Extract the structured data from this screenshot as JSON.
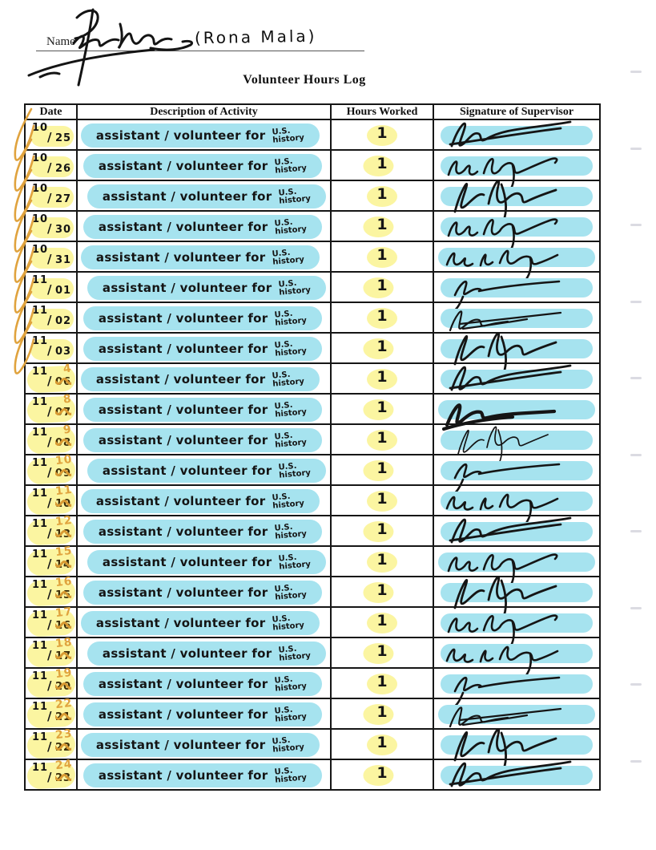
{
  "document": {
    "name_label": "Name",
    "name_printed": "(Rona Mala)",
    "title": "Volunteer Hours Log"
  },
  "colors": {
    "highlight_yellow": "#fbf5a1",
    "highlight_cyan": "#a6e3ef",
    "correction_orange": "#e0a33e",
    "ink_black": "#151515"
  },
  "table": {
    "columns": [
      "Date",
      "Description of Activity",
      "Hours Worked",
      "Signature of Supervisor"
    ],
    "description": {
      "main": "assistant / volunteer for",
      "subject_line1": "U.S.",
      "subject_line2": "history"
    },
    "rows": [
      {
        "month": "10",
        "day": "25",
        "correction": "",
        "checkmark": true,
        "hours": "1",
        "signature_variant": "A"
      },
      {
        "month": "10",
        "day": "26",
        "correction": "",
        "checkmark": true,
        "hours": "1",
        "signature_variant": "B"
      },
      {
        "month": "10",
        "day": "27",
        "correction": "",
        "checkmark": true,
        "hours": "1",
        "signature_variant": "C"
      },
      {
        "month": "10",
        "day": "30",
        "correction": "",
        "checkmark": true,
        "hours": "1",
        "signature_variant": "B"
      },
      {
        "month": "10",
        "day": "31",
        "correction": "",
        "checkmark": true,
        "hours": "1",
        "signature_variant": "D"
      },
      {
        "month": "11",
        "day": "01",
        "correction": "",
        "checkmark": true,
        "hours": "1",
        "signature_variant": "E"
      },
      {
        "month": "11",
        "day": "02",
        "correction": "",
        "checkmark": true,
        "hours": "1",
        "signature_variant": "F"
      },
      {
        "month": "11",
        "day": "03",
        "correction": "",
        "checkmark": true,
        "hours": "1",
        "signature_variant": "C"
      },
      {
        "month": "11",
        "day": "06",
        "correction": "4",
        "checkmark": false,
        "hours": "1",
        "signature_variant": "A"
      },
      {
        "month": "11",
        "day": "07",
        "correction": "8",
        "checkmark": false,
        "hours": "1",
        "signature_variant": "G"
      },
      {
        "month": "11",
        "day": "08",
        "correction": "9",
        "checkmark": false,
        "hours": "1",
        "signature_variant": "H"
      },
      {
        "month": "11",
        "day": "09",
        "correction": "10",
        "checkmark": false,
        "hours": "1",
        "signature_variant": "E"
      },
      {
        "month": "11",
        "day": "10",
        "correction": "11",
        "checkmark": false,
        "hours": "1",
        "signature_variant": "D"
      },
      {
        "month": "11",
        "day": "13",
        "correction": "12",
        "checkmark": false,
        "hours": "1",
        "signature_variant": "A"
      },
      {
        "month": "11",
        "day": "14",
        "correction": "15",
        "checkmark": false,
        "hours": "1",
        "signature_variant": "B"
      },
      {
        "month": "11",
        "day": "15",
        "correction": "16",
        "checkmark": false,
        "hours": "1",
        "signature_variant": "C"
      },
      {
        "month": "11",
        "day": "16",
        "correction": "17",
        "checkmark": false,
        "hours": "1",
        "signature_variant": "B"
      },
      {
        "month": "11",
        "day": "17",
        "correction": "18",
        "checkmark": false,
        "hours": "1",
        "signature_variant": "D"
      },
      {
        "month": "11",
        "day": "20",
        "correction": "19",
        "checkmark": false,
        "hours": "1",
        "signature_variant": "E"
      },
      {
        "month": "11",
        "day": "21",
        "correction": "22",
        "checkmark": false,
        "hours": "1",
        "signature_variant": "F"
      },
      {
        "month": "11",
        "day": "22",
        "correction": "23",
        "checkmark": false,
        "hours": "1",
        "signature_variant": "C"
      },
      {
        "month": "11",
        "day": "23",
        "correction": "24",
        "checkmark": false,
        "hours": "1",
        "signature_variant": "A"
      }
    ]
  }
}
